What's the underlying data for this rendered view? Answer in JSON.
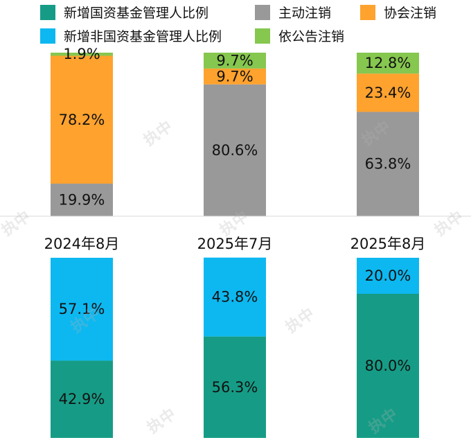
{
  "legend": [
    {
      "label": "新增国资基金管理人比例",
      "color": "#169c86"
    },
    {
      "label": "主动注销",
      "color": "#999999"
    },
    {
      "label": "协会注销",
      "color": "#ffa22e"
    },
    {
      "label": "新增非国资基金管理人比例",
      "color": "#0db8f0"
    },
    {
      "label": "依公告注销",
      "color": "#86c74f"
    }
  ],
  "watermark": "执中",
  "chart_data": [
    {
      "type": "bar",
      "stacked": true,
      "percent_stacked": true,
      "categories": [
        "2024年8月",
        "2025年7月",
        "2025年8月"
      ],
      "series": [
        {
          "name": "主动注销",
          "values": [
            19.9,
            80.6,
            63.8
          ],
          "labels": [
            "19.9%",
            "80.6%",
            "63.8%"
          ],
          "color": "#999999"
        },
        {
          "name": "协会注销",
          "values": [
            78.2,
            9.7,
            23.4
          ],
          "labels": [
            "78.2%",
            "9.7%",
            "23.4%"
          ],
          "color": "#ffa22e"
        },
        {
          "name": "依公告注销",
          "values": [
            1.9,
            9.7,
            12.8
          ],
          "labels": [
            "1.9%",
            "9.7%",
            "12.8%"
          ],
          "color": "#86c74f"
        }
      ]
    },
    {
      "type": "bar",
      "stacked": true,
      "percent_stacked": true,
      "categories": [
        "2024年8月",
        "2025年7月",
        "2025年8月"
      ],
      "series": [
        {
          "name": "新增国资基金管理人比例",
          "values": [
            42.9,
            56.3,
            80.0
          ],
          "labels": [
            "42.9%",
            "56.3%",
            "80.0%"
          ],
          "color": "#169c86"
        },
        {
          "name": "新增非国资基金管理人比例",
          "values": [
            57.1,
            43.8,
            20.0
          ],
          "labels": [
            "57.1%",
            "43.8%",
            "20.0%"
          ],
          "color": "#0db8f0"
        }
      ]
    }
  ]
}
